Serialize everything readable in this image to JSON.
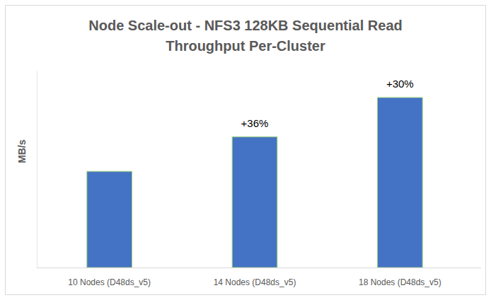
{
  "chart_data": {
    "type": "bar",
    "title": "Node Scale-out - NFS3 128KB Sequential Read\nThroughput Per-Cluster",
    "y_label": "MB/s",
    "categories": [
      "10 Nodes (D48ds_v5)",
      "14 Nodes (D48ds_v5)",
      "18 Nodes (D48ds_v5)"
    ],
    "values": [
      100,
      136,
      177
    ],
    "color": "#4472c4",
    "ylim": [
      0,
      205
    ],
    "yticks": [],
    "tick_labels": "x",
    "grid": false,
    "annotations": [
      {
        "x": "14 Nodes (D48ds_v5)",
        "text": "+36%"
      },
      {
        "x": "18 Nodes (D48ds_v5)",
        "text": "+30%"
      }
    ]
  }
}
